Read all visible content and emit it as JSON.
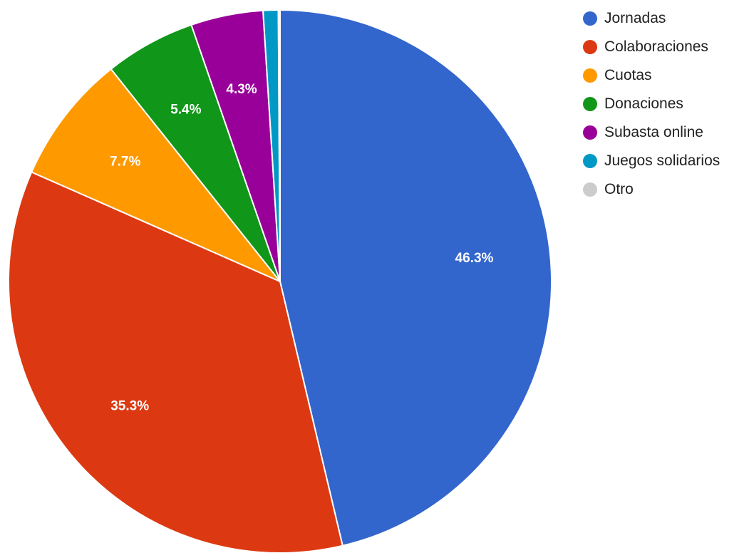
{
  "chart_data": {
    "type": "pie",
    "legend_position": "right",
    "slices": [
      {
        "label": "Jornadas",
        "value": 46.3,
        "display": "46.3%",
        "color": "#3366cc"
      },
      {
        "label": "Colaboraciones",
        "value": 35.3,
        "display": "35.3%",
        "color": "#dc3912"
      },
      {
        "label": "Cuotas",
        "value": 7.7,
        "display": "7.7%",
        "color": "#ff9900"
      },
      {
        "label": "Donaciones",
        "value": 5.4,
        "display": "5.4%",
        "color": "#109618"
      },
      {
        "label": "Subasta online",
        "value": 4.3,
        "display": "4.3%",
        "color": "#990099"
      },
      {
        "label": "Juegos solidarios",
        "value": 0.9,
        "display": "",
        "color": "#0099c6"
      },
      {
        "label": "Otro",
        "value": 0.1,
        "display": "",
        "color": "#cccccc"
      }
    ]
  }
}
